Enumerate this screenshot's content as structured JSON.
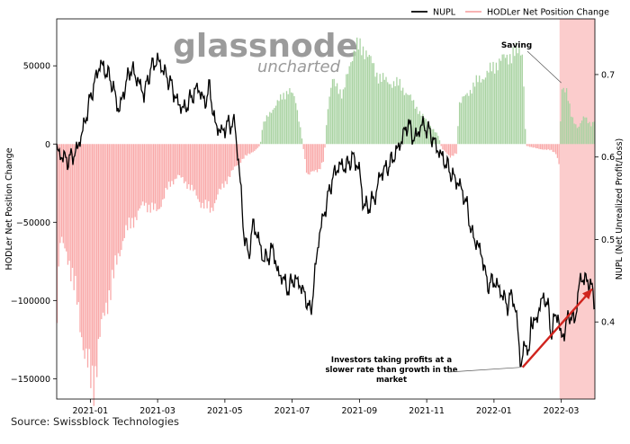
{
  "chart_data": {
    "type": "bar+line",
    "legend": {
      "placement": "top-right",
      "entries": [
        {
          "label": "NUPL",
          "color": "#000000",
          "kind": "line"
        },
        {
          "label": "HODLer Net Position Change",
          "color": "#f7a8a8",
          "kind": "line"
        }
      ]
    },
    "watermark": {
      "line1": "glassnode",
      "line2": "uncharted"
    },
    "left_axis": {
      "label": "HODLer Net Position Change",
      "ticks": [
        50000,
        0,
        -50000,
        -100000,
        -150000
      ],
      "tick_labels": [
        "50000",
        "0",
        "−50000",
        "−100000",
        "−150000"
      ],
      "range": [
        -163000,
        80000
      ]
    },
    "right_axis": {
      "label": "NUPL (Net Unrealized Profit/Loss)",
      "ticks": [
        0.7,
        0.6,
        0.5,
        0.4
      ],
      "tick_labels": [
        "0.7",
        "0.6",
        "0.5",
        "0.4"
      ],
      "range": [
        0.3065,
        0.7675
      ]
    },
    "x_axis": {
      "tick_labels": [
        "2021-01",
        "2021-03",
        "2021-05",
        "2021-07",
        "2021-09",
        "2021-11",
        "2022-01",
        "2022-03"
      ],
      "tick_months": [
        12,
        14,
        16,
        18,
        20,
        22,
        24,
        26
      ],
      "range_months": [
        11.0,
        27.0
      ]
    },
    "hodl_keypoints": [
      [
        11.0,
        -110000
      ],
      [
        11.1,
        -62000
      ],
      [
        11.35,
        -72000
      ],
      [
        11.6,
        -100000
      ],
      [
        11.85,
        -135000
      ],
      [
        12.0,
        -150000
      ],
      [
        12.1,
        -152000
      ],
      [
        12.25,
        -128000
      ],
      [
        12.5,
        -100000
      ],
      [
        12.8,
        -75000
      ],
      [
        13.0,
        -58000
      ],
      [
        13.3,
        -48000
      ],
      [
        13.6,
        -38000
      ],
      [
        14.0,
        -43000
      ],
      [
        14.3,
        -28000
      ],
      [
        14.6,
        -20000
      ],
      [
        15.0,
        -28000
      ],
      [
        15.3,
        -38000
      ],
      [
        15.6,
        -42000
      ],
      [
        15.8,
        -32000
      ],
      [
        16.0,
        -25000
      ],
      [
        16.3,
        -15000
      ],
      [
        16.6,
        -8000
      ],
      [
        16.9,
        -4000
      ],
      [
        17.05,
        -1000
      ],
      [
        17.12,
        12000
      ],
      [
        17.4,
        22000
      ],
      [
        17.7,
        30000
      ],
      [
        17.9,
        35000
      ],
      [
        18.1,
        28000
      ],
      [
        18.25,
        10000
      ],
      [
        18.35,
        -5000
      ],
      [
        18.45,
        -20000
      ],
      [
        18.8,
        -16000
      ],
      [
        18.95,
        -10000
      ],
      [
        19.05,
        22000
      ],
      [
        19.2,
        40000
      ],
      [
        19.35,
        38000
      ],
      [
        19.5,
        30000
      ],
      [
        19.75,
        55000
      ],
      [
        19.9,
        62000
      ],
      [
        20.2,
        60000
      ],
      [
        20.5,
        45000
      ],
      [
        20.8,
        40000
      ],
      [
        21.2,
        38000
      ],
      [
        21.5,
        30000
      ],
      [
        21.8,
        20000
      ],
      [
        22.1,
        12000
      ],
      [
        22.35,
        5000
      ],
      [
        22.45,
        -3000
      ],
      [
        22.7,
        -8000
      ],
      [
        22.9,
        -6000
      ],
      [
        22.95,
        25000
      ],
      [
        23.2,
        32000
      ],
      [
        23.5,
        40000
      ],
      [
        23.8,
        45000
      ],
      [
        24.1,
        52000
      ],
      [
        24.4,
        56000
      ],
      [
        24.6,
        58000
      ],
      [
        24.85,
        60000
      ],
      [
        24.95,
        -1000
      ],
      [
        25.3,
        -3000
      ],
      [
        25.7,
        -4000
      ],
      [
        25.85,
        -6000
      ],
      [
        25.95,
        -14000
      ],
      [
        26.0,
        38000
      ],
      [
        26.15,
        34000
      ],
      [
        26.3,
        18000
      ],
      [
        26.5,
        10000
      ],
      [
        26.7,
        18000
      ],
      [
        26.9,
        12000
      ],
      [
        27.0,
        15000
      ]
    ],
    "nupl_keypoints": [
      [
        11.0,
        0.608
      ],
      [
        11.15,
        0.601
      ],
      [
        11.35,
        0.596
      ],
      [
        11.6,
        0.608
      ],
      [
        11.8,
        0.636
      ],
      [
        12.0,
        0.671
      ],
      [
        12.15,
        0.694
      ],
      [
        12.3,
        0.714
      ],
      [
        12.45,
        0.704
      ],
      [
        12.6,
        0.695
      ],
      [
        12.75,
        0.673
      ],
      [
        12.85,
        0.655
      ],
      [
        13.0,
        0.68
      ],
      [
        13.2,
        0.708
      ],
      [
        13.4,
        0.694
      ],
      [
        13.6,
        0.676
      ],
      [
        13.8,
        0.708
      ],
      [
        14.0,
        0.718
      ],
      [
        14.2,
        0.703
      ],
      [
        14.4,
        0.688
      ],
      [
        14.6,
        0.665
      ],
      [
        14.8,
        0.658
      ],
      [
        15.0,
        0.672
      ],
      [
        15.2,
        0.685
      ],
      [
        15.4,
        0.665
      ],
      [
        15.55,
        0.685
      ],
      [
        15.7,
        0.64
      ],
      [
        15.9,
        0.63
      ],
      [
        16.1,
        0.64
      ],
      [
        16.3,
        0.64
      ],
      [
        16.5,
        0.55
      ],
      [
        16.55,
        0.51
      ],
      [
        16.7,
        0.48
      ],
      [
        16.85,
        0.52
      ],
      [
        17.0,
        0.5
      ],
      [
        17.15,
        0.475
      ],
      [
        17.3,
        0.48
      ],
      [
        17.45,
        0.49
      ],
      [
        17.55,
        0.46
      ],
      [
        17.7,
        0.455
      ],
      [
        17.9,
        0.438
      ],
      [
        18.0,
        0.452
      ],
      [
        18.2,
        0.448
      ],
      [
        18.4,
        0.43
      ],
      [
        18.55,
        0.41
      ],
      [
        18.65,
        0.448
      ],
      [
        18.8,
        0.505
      ],
      [
        19.0,
        0.54
      ],
      [
        19.2,
        0.575
      ],
      [
        19.4,
        0.59
      ],
      [
        19.6,
        0.588
      ],
      [
        19.8,
        0.6
      ],
      [
        20.0,
        0.585
      ],
      [
        20.1,
        0.545
      ],
      [
        20.25,
        0.538
      ],
      [
        20.5,
        0.555
      ],
      [
        20.6,
        0.578
      ],
      [
        20.9,
        0.591
      ],
      [
        21.2,
        0.615
      ],
      [
        21.45,
        0.642
      ],
      [
        21.6,
        0.623
      ],
      [
        21.7,
        0.625
      ],
      [
        21.85,
        0.64
      ],
      [
        22.1,
        0.63
      ],
      [
        22.3,
        0.611
      ],
      [
        22.6,
        0.59
      ],
      [
        22.8,
        0.575
      ],
      [
        23.0,
        0.565
      ],
      [
        23.2,
        0.54
      ],
      [
        23.35,
        0.505
      ],
      [
        23.5,
        0.495
      ],
      [
        23.65,
        0.48
      ],
      [
        23.8,
        0.445
      ],
      [
        24.0,
        0.45
      ],
      [
        24.2,
        0.437
      ],
      [
        24.4,
        0.42
      ],
      [
        24.55,
        0.435
      ],
      [
        24.7,
        0.396
      ],
      [
        24.8,
        0.345
      ],
      [
        24.95,
        0.38
      ],
      [
        25.0,
        0.367
      ],
      [
        25.05,
        0.352
      ],
      [
        25.1,
        0.405
      ],
      [
        25.25,
        0.397
      ],
      [
        25.35,
        0.42
      ],
      [
        25.5,
        0.43
      ],
      [
        25.6,
        0.42
      ],
      [
        25.7,
        0.385
      ],
      [
        25.8,
        0.405
      ],
      [
        25.9,
        0.41
      ],
      [
        26.0,
        0.378
      ],
      [
        26.1,
        0.39
      ],
      [
        26.25,
        0.41
      ],
      [
        26.4,
        0.4
      ],
      [
        26.55,
        0.45
      ],
      [
        26.7,
        0.455
      ],
      [
        26.75,
        0.445
      ],
      [
        26.85,
        0.452
      ],
      [
        27.0,
        0.42
      ]
    ],
    "highlight_region": {
      "x_start_months": 25.95,
      "x_end_months": 27.0,
      "color": "#f8a3a3"
    },
    "annotations": [
      {
        "text": "Saving",
        "anchor_month": 26.0,
        "anchor_value": 0.69
      },
      {
        "lines": [
          "Investors taking profits at a",
          "slower rate than growth in the",
          "market"
        ],
        "anchor_month": 24.8,
        "anchor_value": 0.345
      },
      {
        "arrow": "trend",
        "from_month": 24.85,
        "from_value": 0.345,
        "to_month": 27.0,
        "to_value": 0.44,
        "color": "#d0241e"
      }
    ],
    "colors": {
      "positive": "#a9d3a2",
      "negative": "#f9a9a9",
      "line": "#000000",
      "arrow": "#d0241e"
    }
  },
  "source": "Source: Swissblock Technologies"
}
